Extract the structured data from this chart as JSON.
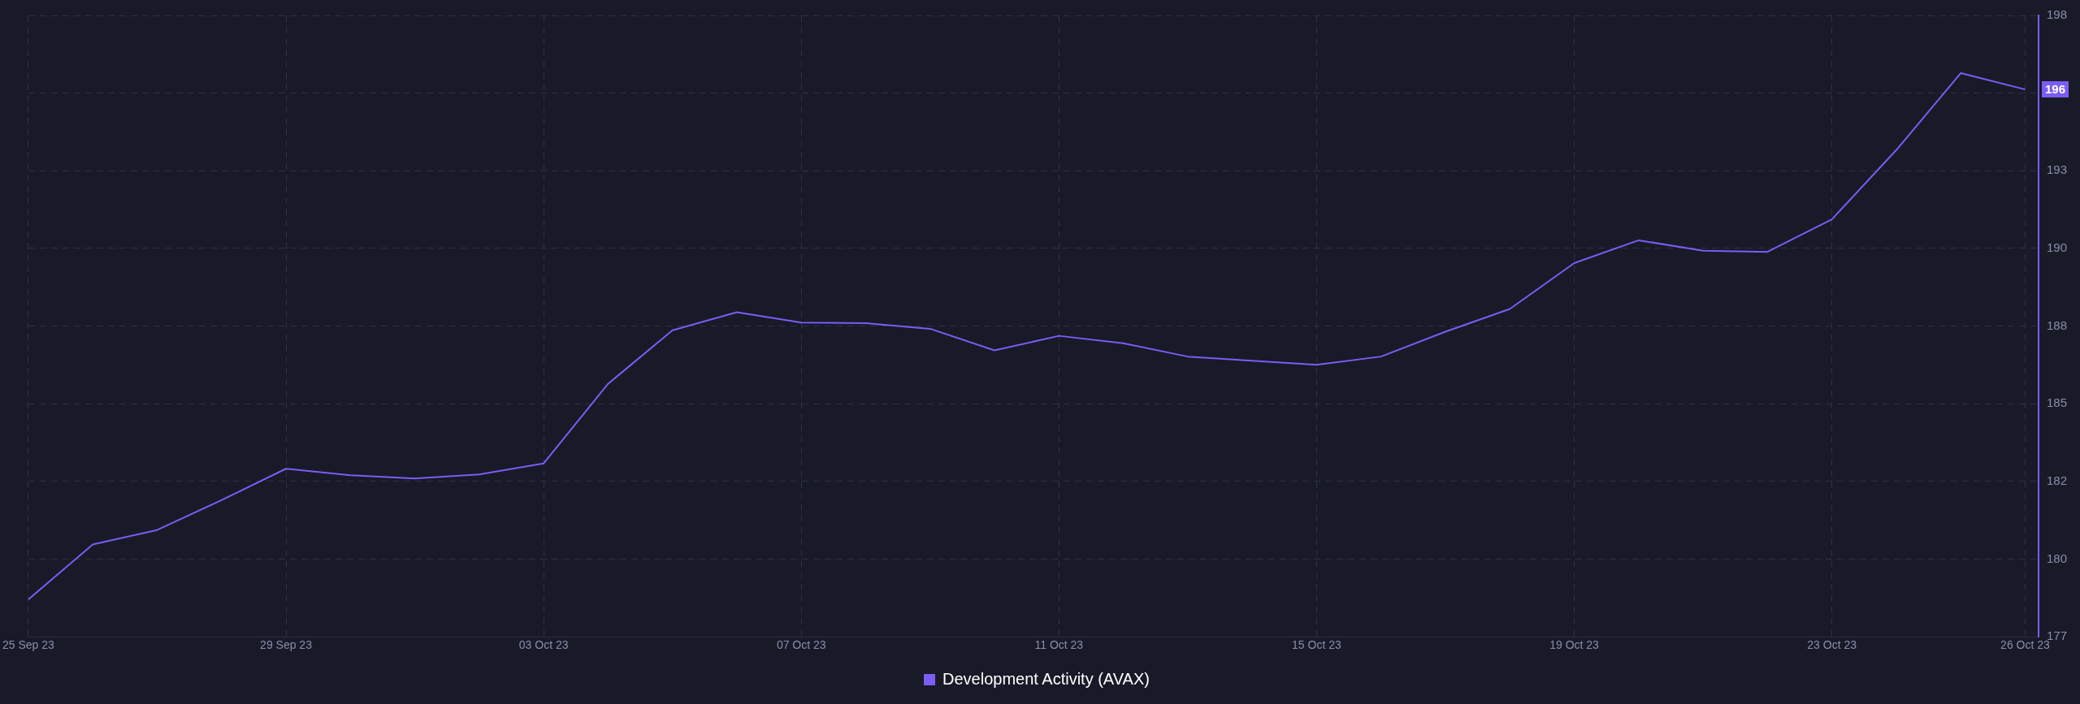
{
  "chart_data": {
    "type": "line",
    "x": [
      "--09-25",
      "--09-26",
      "--09-27",
      "--09-28",
      "--09-29",
      "--09-30",
      "--10-01",
      "--10-02",
      "--10-03",
      "--10-04",
      "--10-05",
      "--10-06",
      "--10-07",
      "--10-08",
      "--10-09",
      "--10-10",
      "--10-11",
      "--10-12",
      "--10-13",
      "--10-14",
      "--10-15",
      "--10-16",
      "--10-17",
      "--10-18",
      "--10-19",
      "--10-20",
      "--10-21",
      "--10-22",
      "--10-23",
      "--10-24",
      "--10-25",
      "--10-26"
    ],
    "series": [
      {
        "name": "Development Activity (AVAX)",
        "color": "#7b5cf5",
        "values": [
          178.26,
          180.12,
          180.61,
          181.62,
          182.68,
          182.46,
          182.35,
          182.49,
          182.86,
          185.55,
          187.36,
          187.97,
          187.62,
          187.6,
          187.41,
          186.68,
          187.17,
          186.92,
          186.47,
          186.33,
          186.19,
          186.47,
          187.31,
          188.08,
          189.63,
          190.4,
          190.05,
          190.01,
          191.11,
          193.45,
          196.05,
          195.5
        ],
        "value_labels": [
          null,
          null,
          null,
          null,
          null,
          null,
          null,
          null,
          null,
          null,
          null,
          null,
          null,
          null,
          null,
          null,
          null,
          null,
          null,
          null,
          null,
          null,
          null,
          null,
          null,
          null,
          null,
          null,
          null,
          null,
          null,
          "196"
        ]
      }
    ],
    "xlim": [
      "--09-25",
      "--10-26T05:00"
    ],
    "xticks": [
      {
        "value": "--09-25",
        "label": "25 Sep 23"
      },
      {
        "value": "--09-29",
        "label": "29 Sep 23"
      },
      {
        "value": "--10-03",
        "label": "03 Oct 23"
      },
      {
        "value": "--10-07",
        "label": "07 Oct 23"
      },
      {
        "value": "--10-11",
        "label": "11 Oct 23"
      },
      {
        "value": "--10-15",
        "label": "15 Oct 23"
      },
      {
        "value": "--10-19",
        "label": "19 Oct 23"
      },
      {
        "value": "--10-23",
        "label": "23 Oct 23"
      },
      {
        "value": "--10-26",
        "label": "26 Oct 23"
      }
    ],
    "ylim": [
      177,
      198
    ],
    "yticks": [
      177,
      {
        "value": 179.625,
        "label": "180"
      },
      {
        "value": 182.25,
        "label": "182"
      },
      {
        "value": 184.875,
        "label": "185"
      },
      {
        "value": 187.5,
        "label": "188"
      },
      {
        "value": 190.125,
        "label": "190"
      },
      {
        "value": 192.75,
        "label": "193"
      },
      {
        "value": 195.375,
        "label": null
      },
      198
    ],
    "grid": true,
    "legend": "bottom",
    "marker": "none",
    "line_style": "solid"
  }
}
